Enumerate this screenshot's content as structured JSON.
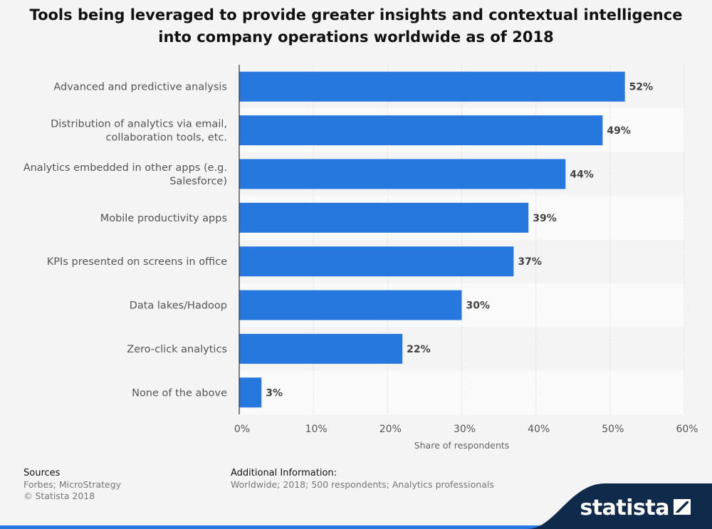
{
  "title_lines": [
    "Tools being leveraged to provide greater insights and contextual intelligence",
    "into company operations worldwide as of 2018"
  ],
  "chart_data": {
    "type": "bar",
    "orientation": "horizontal",
    "categories": [
      [
        "Advanced and predictive analysis"
      ],
      [
        "Distribution of analytics via email,",
        "collaboration tools, etc."
      ],
      [
        "Analytics embedded in other apps (e.g.",
        "Salesforce)"
      ],
      [
        "Mobile productivity apps"
      ],
      [
        "KPIs presented on screens in office"
      ],
      [
        "Data lakes/Hadoop"
      ],
      [
        "Zero-click analytics"
      ],
      [
        "None of the above"
      ]
    ],
    "values": [
      52,
      49,
      44,
      39,
      37,
      30,
      22,
      3
    ],
    "value_labels": [
      "52%",
      "49%",
      "44%",
      "39%",
      "37%",
      "30%",
      "22%",
      "3%"
    ],
    "xlim": [
      0,
      60
    ],
    "xticks": [
      0,
      10,
      20,
      30,
      40,
      50,
      60
    ],
    "xtick_labels": [
      "0%",
      "10%",
      "20%",
      "30%",
      "40%",
      "50%",
      "60%"
    ],
    "xlabel": "Share of respondents",
    "grid": true,
    "bar_color": "#2778de"
  },
  "footer": {
    "sources_heading": "Sources",
    "sources_lines": [
      "Forbes; MicroStrategy",
      "© Statista 2018"
    ],
    "additional_heading": "Additional Information:",
    "additional_text": "Worldwide; 2018; 500 respondents; Analytics professionals"
  },
  "brand": {
    "name": "statista",
    "dark_color": "#0f2a4a",
    "accent_color": "#2778de"
  }
}
